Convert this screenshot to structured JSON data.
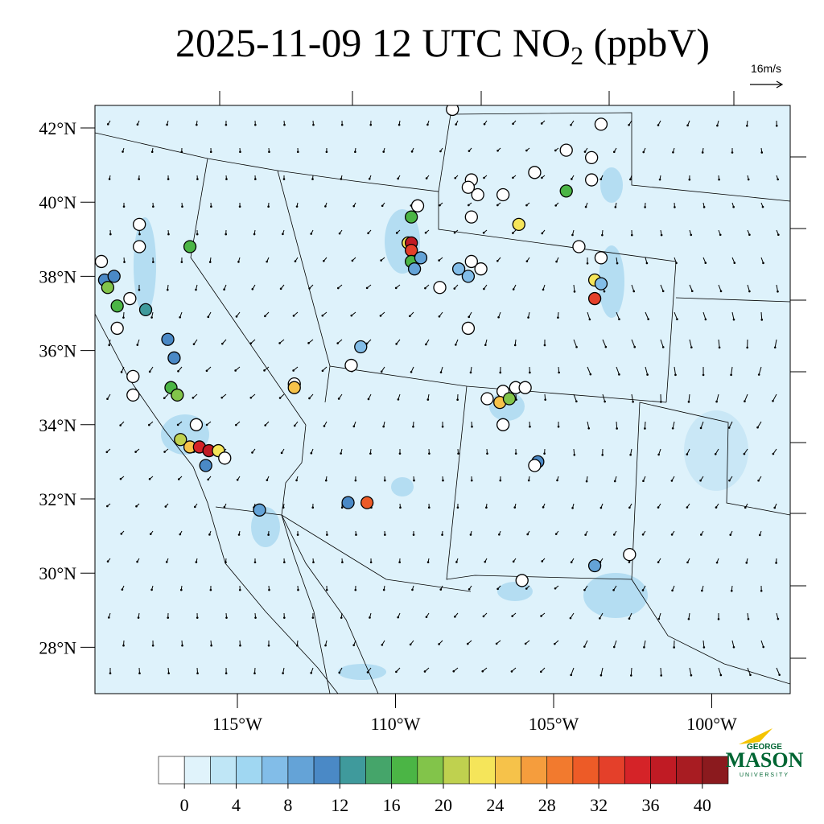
{
  "title": {
    "text": "2025-11-09 12 UTC NO",
    "subscript": "2",
    "suffix": "(ppbV)"
  },
  "wind_reference": "16m/s",
  "lat_ticks": [
    {
      "value": 42,
      "label": "42°N"
    },
    {
      "value": 40,
      "label": "40°N"
    },
    {
      "value": 38,
      "label": "38°N"
    },
    {
      "value": 36,
      "label": "36°N"
    },
    {
      "value": 34,
      "label": "34°N"
    },
    {
      "value": 32,
      "label": "32°N"
    },
    {
      "value": 30,
      "label": "30°N"
    },
    {
      "value": 28,
      "label": "28°N"
    }
  ],
  "lon_ticks": [
    {
      "value": -115,
      "label": "115°W"
    },
    {
      "value": -110,
      "label": "110°W"
    },
    {
      "value": -105,
      "label": "105°W"
    },
    {
      "value": -100,
      "label": "100°W"
    }
  ],
  "colorbar": {
    "colors": [
      "#ffffff",
      "#e0f3fb",
      "#bfe6f6",
      "#a0d7f2",
      "#82bde8",
      "#64a3d7",
      "#4a89c6",
      "#3f9a9c",
      "#45a56a",
      "#4bb545",
      "#82c44a",
      "#bfd14f",
      "#f5e55a",
      "#f6c24a",
      "#f59d3d",
      "#f27a2e",
      "#ed5b27",
      "#e4402a",
      "#d52328",
      "#c01b24",
      "#a81c22",
      "#8b1a1e"
    ],
    "ticks": [
      0,
      4,
      8,
      12,
      16,
      20,
      24,
      28,
      32,
      36,
      40
    ]
  },
  "stations": [
    {
      "lon": -119.3,
      "lat": 38.4,
      "value": null
    },
    {
      "lon": -119.2,
      "lat": 37.9,
      "value": 10
    },
    {
      "lon": -118.9,
      "lat": 38.0,
      "value": 10
    },
    {
      "lon": -119.1,
      "lat": 37.7,
      "value": 18
    },
    {
      "lon": -118.8,
      "lat": 37.2,
      "value": 17
    },
    {
      "lon": -118.4,
      "lat": 37.4,
      "value": null
    },
    {
      "lon": -118.1,
      "lat": 39.4,
      "value": null
    },
    {
      "lon": -118.1,
      "lat": 38.8,
      "value": null
    },
    {
      "lon": -117.9,
      "lat": 37.1,
      "value": 12
    },
    {
      "lon": -118.8,
      "lat": 36.6,
      "value": null
    },
    {
      "lon": -117.2,
      "lat": 36.3,
      "value": 11
    },
    {
      "lon": -117.0,
      "lat": 35.8,
      "value": 10
    },
    {
      "lon": -117.1,
      "lat": 35.0,
      "value": 17
    },
    {
      "lon": -116.9,
      "lat": 34.8,
      "value": 19
    },
    {
      "lon": -118.3,
      "lat": 35.3,
      "value": null
    },
    {
      "lon": -118.3,
      "lat": 34.8,
      "value": null
    },
    {
      "lon": -116.5,
      "lat": 38.8,
      "value": 16
    },
    {
      "lon": -116.3,
      "lat": 34.0,
      "value": null
    },
    {
      "lon": -116.8,
      "lat": 33.6,
      "value": 20
    },
    {
      "lon": -116.5,
      "lat": 33.4,
      "value": 24
    },
    {
      "lon": -116.2,
      "lat": 33.4,
      "value": 34
    },
    {
      "lon": -115.9,
      "lat": 33.3,
      "value": 36
    },
    {
      "lon": -115.6,
      "lat": 33.3,
      "value": 22
    },
    {
      "lon": -116.0,
      "lat": 32.9,
      "value": 10
    },
    {
      "lon": -115.4,
      "lat": 33.1,
      "value": null
    },
    {
      "lon": -114.3,
      "lat": 31.7,
      "value": 9
    },
    {
      "lon": -113.2,
      "lat": 35.1,
      "value": null
    },
    {
      "lon": -113.2,
      "lat": 35.0,
      "value": 25
    },
    {
      "lon": -111.5,
      "lat": 31.9,
      "value": 11
    },
    {
      "lon": -110.9,
      "lat": 31.9,
      "value": 30
    },
    {
      "lon": -111.1,
      "lat": 36.1,
      "value": 6
    },
    {
      "lon": -111.4,
      "lat": 35.6,
      "value": null
    },
    {
      "lon": -109.5,
      "lat": 39.6,
      "value": 17
    },
    {
      "lon": -109.6,
      "lat": 38.9,
      "value": 23
    },
    {
      "lon": -109.5,
      "lat": 38.9,
      "value": 36
    },
    {
      "lon": -109.5,
      "lat": 38.7,
      "value": 33
    },
    {
      "lon": -109.5,
      "lat": 38.4,
      "value": 17
    },
    {
      "lon": -109.4,
      "lat": 38.2,
      "value": 9
    },
    {
      "lon": -109.3,
      "lat": 39.9,
      "value": null
    },
    {
      "lon": -109.2,
      "lat": 38.5,
      "value": 8
    },
    {
      "lon": -108.6,
      "lat": 37.7,
      "value": null
    },
    {
      "lon": -108.0,
      "lat": 38.2,
      "value": 6
    },
    {
      "lon": -107.7,
      "lat": 38.0,
      "value": 7
    },
    {
      "lon": -107.3,
      "lat": 38.2,
      "value": null
    },
    {
      "lon": -107.6,
      "lat": 38.4,
      "value": null
    },
    {
      "lon": -107.7,
      "lat": 36.6,
      "value": null
    },
    {
      "lon": -108.2,
      "lat": 42.5,
      "value": null
    },
    {
      "lon": -107.6,
      "lat": 40.6,
      "value": null
    },
    {
      "lon": -107.4,
      "lat": 40.2,
      "value": null
    },
    {
      "lon": -107.7,
      "lat": 40.4,
      "value": null
    },
    {
      "lon": -106.6,
      "lat": 40.2,
      "value": null
    },
    {
      "lon": -105.6,
      "lat": 40.8,
      "value": null
    },
    {
      "lon": -107.6,
      "lat": 39.6,
      "value": null
    },
    {
      "lon": -106.1,
      "lat": 39.4,
      "value": 22
    },
    {
      "lon": -104.6,
      "lat": 40.3,
      "value": 16
    },
    {
      "lon": -104.6,
      "lat": 41.4,
      "value": null
    },
    {
      "lon": -103.8,
      "lat": 41.2,
      "value": null
    },
    {
      "lon": -103.5,
      "lat": 42.1,
      "value": null
    },
    {
      "lon": -103.8,
      "lat": 40.6,
      "value": null
    },
    {
      "lon": -104.2,
      "lat": 38.8,
      "value": null
    },
    {
      "lon": -103.5,
      "lat": 38.5,
      "value": null
    },
    {
      "lon": -103.7,
      "lat": 37.9,
      "value": 22
    },
    {
      "lon": -103.7,
      "lat": 37.4,
      "value": 32
    },
    {
      "lon": -103.5,
      "lat": 37.8,
      "value": 7
    },
    {
      "lon": -106.6,
      "lat": 34.9,
      "value": null
    },
    {
      "lon": -106.7,
      "lat": 34.6,
      "value": 24
    },
    {
      "lon": -106.4,
      "lat": 34.7,
      "value": 18
    },
    {
      "lon": -106.2,
      "lat": 35.0,
      "value": null
    },
    {
      "lon": -105.9,
      "lat": 35.0,
      "value": null
    },
    {
      "lon": -107.1,
      "lat": 34.7,
      "value": null
    },
    {
      "lon": -106.6,
      "lat": 34.0,
      "value": null
    },
    {
      "lon": -105.5,
      "lat": 33.0,
      "value": 10
    },
    {
      "lon": -105.6,
      "lat": 32.9,
      "value": null
    },
    {
      "lon": -103.7,
      "lat": 30.2,
      "value": 9
    },
    {
      "lon": -102.6,
      "lat": 30.5,
      "value": null
    },
    {
      "lon": -106.0,
      "lat": 29.8,
      "value": null
    }
  ],
  "logo": {
    "top": "GEORGE",
    "main": "MASON",
    "bottom": "UNIVERSITY"
  }
}
